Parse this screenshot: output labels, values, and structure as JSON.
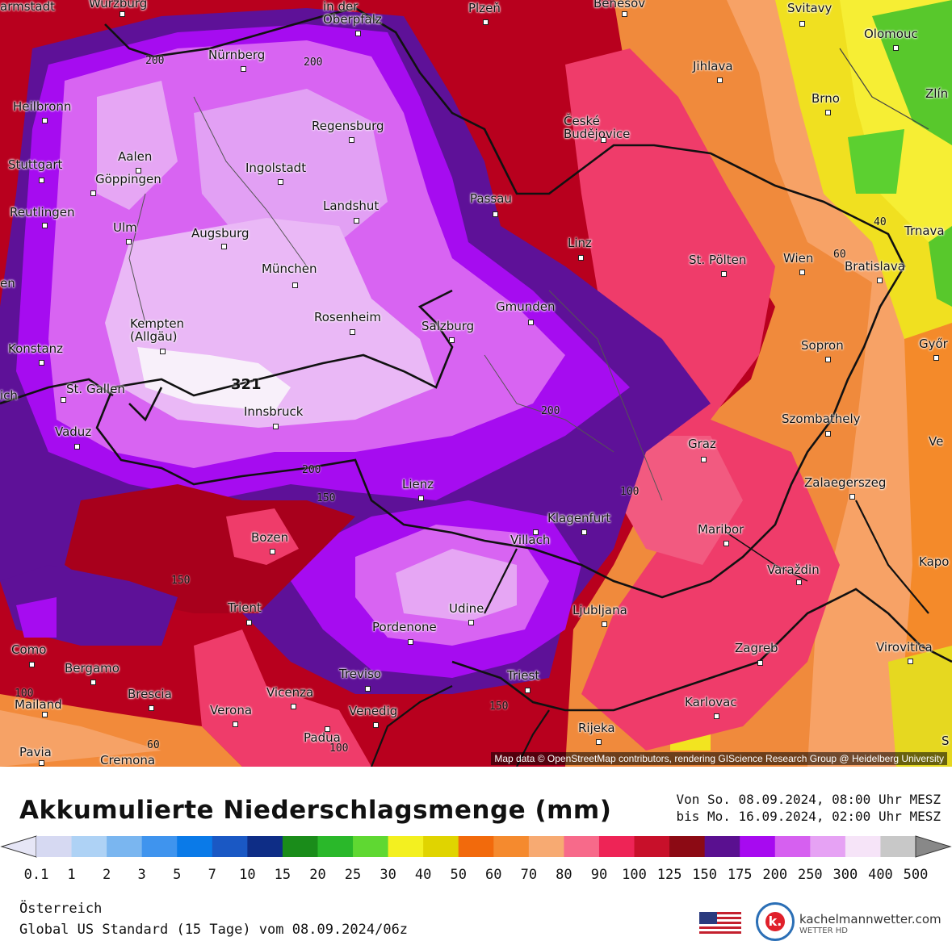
{
  "map": {
    "cities": [
      {
        "id": "armstadt",
        "name": "armstadt"
      },
      {
        "id": "wuerzburg",
        "name": "Würzburg"
      },
      {
        "id": "oberpfalz",
        "name": "in der\nOberpfalz"
      },
      {
        "id": "pilsen",
        "name": "Plzeň"
      },
      {
        "id": "benesov",
        "name": "Benešov"
      },
      {
        "id": "svitavy",
        "name": "Svitavy"
      },
      {
        "id": "olomouc",
        "name": "Olomouc"
      },
      {
        "id": "nuernberg",
        "name": "Nürnberg"
      },
      {
        "id": "jihlava",
        "name": "Jihlava"
      },
      {
        "id": "heilbronn",
        "name": "Heilbronn"
      },
      {
        "id": "regensburg",
        "name": "Regensburg"
      },
      {
        "id": "budweis",
        "name": "České\nBudějovice"
      },
      {
        "id": "brno",
        "name": "Brno"
      },
      {
        "id": "zlin",
        "name": "Zlín"
      },
      {
        "id": "aalen",
        "name": "Aalen"
      },
      {
        "id": "stuttgart",
        "name": "Stuttgart"
      },
      {
        "id": "goeppingen",
        "name": "Göppingen"
      },
      {
        "id": "ingolstadt",
        "name": "Ingolstadt"
      },
      {
        "id": "passau",
        "name": "Passau"
      },
      {
        "id": "reutlingen",
        "name": "Reutlingen"
      },
      {
        "id": "landshut",
        "name": "Landshut"
      },
      {
        "id": "ulm",
        "name": "Ulm"
      },
      {
        "id": "augsburg",
        "name": "Augsburg"
      },
      {
        "id": "linz",
        "name": "Linz"
      },
      {
        "id": "trnava",
        "name": "Trnava"
      },
      {
        "id": "stpoelten",
        "name": "St. Pölten"
      },
      {
        "id": "wien",
        "name": "Wien"
      },
      {
        "id": "bratislava",
        "name": "Bratislava"
      },
      {
        "id": "muenchen",
        "name": "München"
      },
      {
        "id": "en",
        "name": "en"
      },
      {
        "id": "gmunden",
        "name": "Gmunden"
      },
      {
        "id": "rosenheim",
        "name": "Rosenheim"
      },
      {
        "id": "kempten",
        "name": "Kempten\n(Allgäu)"
      },
      {
        "id": "salzburg",
        "name": "Salzburg"
      },
      {
        "id": "konstanz",
        "name": "Konstanz"
      },
      {
        "id": "sopron",
        "name": "Sopron"
      },
      {
        "id": "gyor",
        "name": "Győr"
      },
      {
        "id": "ich",
        "name": "ich"
      },
      {
        "id": "stgallen",
        "name": "St. Gallen"
      },
      {
        "id": "innsbruck",
        "name": "Innsbruck"
      },
      {
        "id": "szombathely",
        "name": "Szombathely"
      },
      {
        "id": "vaduz",
        "name": "Vaduz"
      },
      {
        "id": "ve",
        "name": "Ve"
      },
      {
        "id": "graz",
        "name": "Graz"
      },
      {
        "id": "lienz",
        "name": "Lienz"
      },
      {
        "id": "zalaegerszeg",
        "name": "Zalaegerszeg"
      },
      {
        "id": "klagenfurt",
        "name": "Klagenfurt"
      },
      {
        "id": "bozen",
        "name": "Bozen"
      },
      {
        "id": "maribor",
        "name": "Maribor"
      },
      {
        "id": "villach",
        "name": "Villach"
      },
      {
        "id": "kapo",
        "name": "Kapo"
      },
      {
        "id": "varazdin",
        "name": "Varaždin"
      },
      {
        "id": "trient",
        "name": "Trient"
      },
      {
        "id": "udine",
        "name": "Udine"
      },
      {
        "id": "ljubljana",
        "name": "Ljubljana"
      },
      {
        "id": "pordenone",
        "name": "Pordenone"
      },
      {
        "id": "como",
        "name": "Como"
      },
      {
        "id": "zagreb",
        "name": "Zagreb"
      },
      {
        "id": "virovitica",
        "name": "Virovitica"
      },
      {
        "id": "bergamo",
        "name": "Bergamo"
      },
      {
        "id": "treviso",
        "name": "Treviso"
      },
      {
        "id": "triest",
        "name": "Triest"
      },
      {
        "id": "brescia",
        "name": "Brescia"
      },
      {
        "id": "vicenza",
        "name": "Vicenza"
      },
      {
        "id": "mailand",
        "name": "Mailand"
      },
      {
        "id": "verona",
        "name": "Verona"
      },
      {
        "id": "karlovac",
        "name": "Karlovac"
      },
      {
        "id": "venedig",
        "name": "Venedig"
      },
      {
        "id": "padua",
        "name": "Padua"
      },
      {
        "id": "rijeka",
        "name": "Rijeka"
      },
      {
        "id": "pavia",
        "name": "Pavia"
      },
      {
        "id": "cremona",
        "name": "Cremona"
      },
      {
        "id": "s_edge",
        "name": "S"
      }
    ],
    "contour_labels": [
      "200",
      "200",
      "40",
      "60",
      "200",
      "200",
      "150",
      "150",
      "100",
      "150",
      "60",
      "100",
      "100",
      "150"
    ],
    "max_value": "321",
    "attribution": "Map data © OpenStreetMap contributors, rendering GIScience Research Group @ Heidelberg University"
  },
  "legend": {
    "title": "Akkumulierte Niederschlagsmenge (mm)",
    "period_line1": "Von So. 08.09.2024, 08:00 Uhr MESZ",
    "period_line2": "bis Mo. 16.09.2024, 02:00 Uhr MESZ",
    "ticks": [
      "0.1",
      "1",
      "2",
      "3",
      "5",
      "7",
      "10",
      "15",
      "20",
      "25",
      "30",
      "40",
      "50",
      "60",
      "70",
      "80",
      "90",
      "100",
      "125",
      "150",
      "175",
      "200",
      "250",
      "300",
      "400",
      "500"
    ],
    "colors": [
      "#d6d9f2",
      "#aed2f5",
      "#7ab6f0",
      "#3f94ee",
      "#0a7ae8",
      "#1a58c4",
      "#0e2d86",
      "#1a8c1a",
      "#2ab82a",
      "#5fd832",
      "#f3f020",
      "#e0d400",
      "#f26a0c",
      "#f58a2e",
      "#f7aa72",
      "#f76a8a",
      "#ee2456",
      "#c8102a",
      "#8c0a14",
      "#5a1090",
      "#a70af0",
      "#d660f0",
      "#e6a2f4",
      "#f6e4f8",
      "#c8c8c8"
    ],
    "region": "Österreich",
    "model": "Global US Standard (15 Tage) vom  08.09.2024/06z",
    "brand_name": "kachelmannwetter.com",
    "brand_sub": "WETTER HD",
    "brand_logo_letter": "k."
  }
}
